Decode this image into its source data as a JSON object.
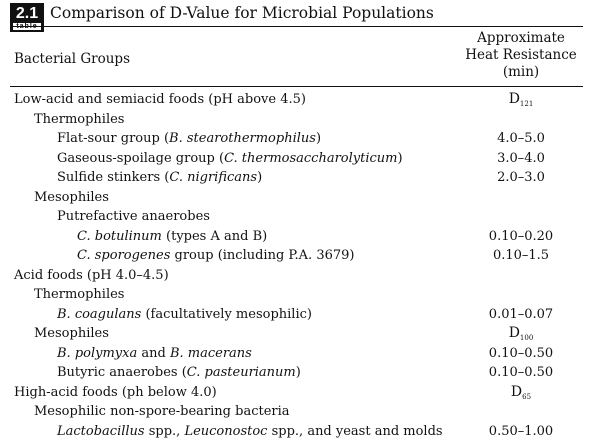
{
  "table": {
    "badge_number": "2.1",
    "badge_word": "table",
    "title": "Comparison of D-Value for Microbial Populations",
    "col_left": "Bacterial Groups",
    "col_right": [
      "Approximate",
      "Heat Resistance",
      "(min)"
    ]
  },
  "rows": [
    {
      "level": 0,
      "parts": [
        {
          "t": "Low-acid and semiacid foods (pH above 4.5)"
        }
      ],
      "value": "D",
      "sub": "121"
    },
    {
      "level": 1,
      "parts": [
        {
          "t": "Thermophiles"
        }
      ],
      "value": ""
    },
    {
      "level": 2,
      "parts": [
        {
          "t": "Flat-sour group ("
        },
        {
          "t": "B. stearothermophilus",
          "i": true
        },
        {
          "t": ")"
        }
      ],
      "value": "4.0–5.0"
    },
    {
      "level": 2,
      "parts": [
        {
          "t": "Gaseous-spoilage group ("
        },
        {
          "t": "C. thermosaccharolyticum",
          "i": true
        },
        {
          "t": ")"
        }
      ],
      "value": "3.0–4.0"
    },
    {
      "level": 2,
      "parts": [
        {
          "t": "Sulfide stinkers ("
        },
        {
          "t": "C. nigrificans",
          "i": true
        },
        {
          "t": ")"
        }
      ],
      "value": "2.0–3.0"
    },
    {
      "level": 1,
      "parts": [
        {
          "t": "Mesophiles"
        }
      ],
      "value": ""
    },
    {
      "level": 2,
      "parts": [
        {
          "t": "Putrefactive anaerobes"
        }
      ],
      "value": ""
    },
    {
      "level": 2,
      "indent": 20,
      "parts": [
        {
          "t": "C. botulinum",
          "i": true
        },
        {
          "t": " (types A and B)"
        }
      ],
      "value": "0.10–0.20"
    },
    {
      "level": 2,
      "indent": 20,
      "parts": [
        {
          "t": "C. sporogenes",
          "i": true
        },
        {
          "t": " group (including P.A. 3679)"
        }
      ],
      "value": "0.10–1.5"
    },
    {
      "level": 0,
      "parts": [
        {
          "t": "Acid foods (pH 4.0–4.5)"
        }
      ],
      "value": ""
    },
    {
      "level": 1,
      "parts": [
        {
          "t": "Thermophiles"
        }
      ],
      "value": ""
    },
    {
      "level": 2,
      "parts": [
        {
          "t": "B. coagulans",
          "i": true
        },
        {
          "t": " (facultatively mesophilic)"
        }
      ],
      "value": "0.01–0.07"
    },
    {
      "level": 1,
      "parts": [
        {
          "t": "Mesophiles"
        }
      ],
      "value": "D",
      "sub": "100"
    },
    {
      "level": 2,
      "parts": [
        {
          "t": "B. polymyxa",
          "i": true
        },
        {
          "t": " and "
        },
        {
          "t": "B. macerans",
          "i": true
        }
      ],
      "value": "0.10–0.50"
    },
    {
      "level": 2,
      "parts": [
        {
          "t": "Butyric anaerobes ("
        },
        {
          "t": "C. pasteurianum",
          "i": true
        },
        {
          "t": ")"
        }
      ],
      "value": "0.10–0.50"
    },
    {
      "level": 0,
      "parts": [
        {
          "t": "High-acid foods (ph below 4.0)"
        }
      ],
      "value": "D",
      "sub": "65"
    },
    {
      "level": 1,
      "parts": [
        {
          "t": "Mesophilic non-spore-bearing bacteria"
        }
      ],
      "value": ""
    },
    {
      "level": 2,
      "parts": [
        {
          "t": "Lactobacillus",
          "i": true
        },
        {
          "t": " spp., "
        },
        {
          "t": "Leuconostoc",
          "i": true
        },
        {
          "t": " spp., and yeast and molds"
        }
      ],
      "value": "0.50–1.00"
    }
  ]
}
